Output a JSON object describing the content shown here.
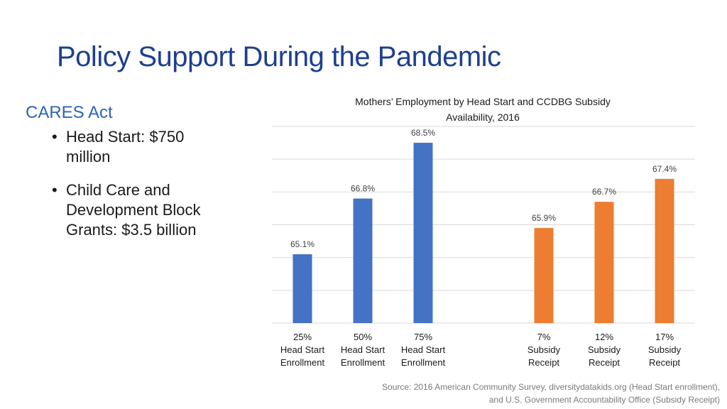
{
  "slide": {
    "title": "Policy Support During the Pandemic"
  },
  "sidebar": {
    "heading": "CARES Act",
    "bullets": [
      "Head Start: $750 million",
      "Child Care and Development Block Grants: $3.5 billion"
    ]
  },
  "chart_data": {
    "type": "bar",
    "title_line1": "Mothers’ Employment by Head Start and CCDBG Subsidy",
    "title_line2": "Availability, 2016",
    "categories": [
      [
        "25%",
        "Head Start",
        "Enrollment"
      ],
      [
        "50%",
        "Head Start",
        "Enrollment"
      ],
      [
        "75%",
        "Head Start",
        "Enrollment"
      ],
      [
        "7%",
        "Subsidy",
        "Receipt"
      ],
      [
        "12%",
        "Subsidy",
        "Receipt"
      ],
      [
        "17%",
        "Subsidy",
        "Receipt"
      ]
    ],
    "values": [
      65.1,
      66.8,
      68.5,
      65.9,
      66.7,
      67.4
    ],
    "data_labels": [
      "65.1%",
      "66.8%",
      "68.5%",
      "65.9%",
      "66.7%",
      "67.4%"
    ],
    "groups": [
      "head-start",
      "head-start",
      "head-start",
      "subsidy",
      "subsidy",
      "subsidy"
    ],
    "colors": {
      "head-start": "#4472c4",
      "subsidy": "#ed7d31",
      "grid": "#d9d9d9"
    },
    "ylim": [
      63,
      69
    ],
    "gridlines": true
  },
  "source": {
    "line1": "Source: 2016 American Community Survey, diversitydatakids.org (Head Start enrollment),",
    "line2": "and U.S. Government Accountability Office (Subsidy Receipt)"
  }
}
